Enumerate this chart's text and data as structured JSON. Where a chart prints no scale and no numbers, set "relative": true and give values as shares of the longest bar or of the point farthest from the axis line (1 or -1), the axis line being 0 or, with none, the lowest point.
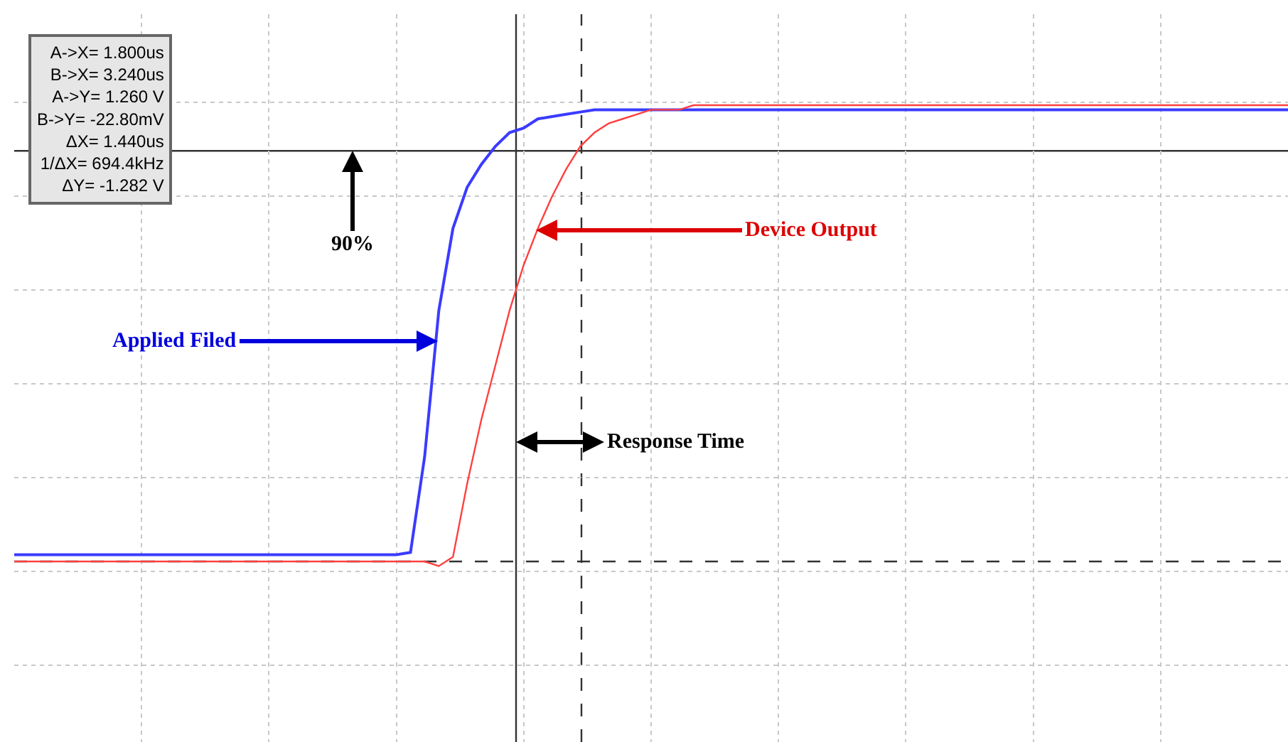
{
  "chart_data": {
    "type": "line",
    "relative": true,
    "grid": true,
    "marker": "none",
    "line_style": "solid",
    "categories": [
      null,
      null,
      null,
      null,
      null,
      null,
      null,
      null,
      null,
      null,
      null,
      null,
      null,
      null,
      null,
      null,
      null,
      null,
      null,
      null,
      null,
      null,
      null,
      null,
      null,
      null,
      null,
      null,
      null,
      null,
      null,
      null,
      null,
      null,
      null,
      null,
      null,
      null,
      null,
      null,
      null,
      null,
      null,
      null,
      null,
      null,
      null,
      null,
      null,
      null,
      null,
      null,
      null,
      null,
      null,
      null,
      null,
      null,
      null,
      null,
      null,
      null,
      null,
      null,
      null,
      null,
      null,
      null,
      null,
      null,
      null,
      null,
      null,
      null,
      null,
      null,
      null,
      null,
      null,
      null,
      null,
      null,
      null,
      null,
      null,
      null,
      null,
      null,
      null,
      null,
      null
    ],
    "series": [
      {
        "color": "#3b3bff",
        "values": [
          0.015,
          0.015,
          0.015,
          0.015,
          0.015,
          0.015,
          0.015,
          0.015,
          0.015,
          0.015,
          0.015,
          0.015,
          0.015,
          0.015,
          0.015,
          0.015,
          0.015,
          0.015,
          0.015,
          0.015,
          0.015,
          0.015,
          0.015,
          0.015,
          0.015,
          0.015,
          0.015,
          0.015,
          0.02,
          0.23,
          0.55,
          0.73,
          0.82,
          0.87,
          0.91,
          0.94,
          0.95,
          0.97,
          0.975,
          0.98,
          0.985,
          0.99,
          0.99,
          0.99,
          0.99,
          0.99,
          0.99,
          0.99,
          0.99,
          0.99,
          0.99,
          0.99,
          0.99,
          0.99,
          0.99,
          0.99,
          0.99,
          0.99,
          0.99,
          0.99,
          0.99,
          0.99,
          0.99,
          0.99,
          0.99,
          0.99,
          0.99,
          0.99,
          0.99,
          0.99,
          0.99,
          0.99,
          0.99,
          0.99,
          0.99,
          0.99,
          0.99,
          0.99,
          0.99,
          0.99,
          0.99,
          0.99,
          0.99,
          0.99,
          0.99,
          0.99,
          0.99,
          0.99,
          0.99,
          0.99,
          0.99
        ]
      },
      {
        "color": "#ff4040",
        "values": [
          0.0,
          0.0,
          0.0,
          0.0,
          0.0,
          0.0,
          0.0,
          0.0,
          0.0,
          0.0,
          0.0,
          0.0,
          0.0,
          0.0,
          0.0,
          0.0,
          0.0,
          0.0,
          0.0,
          0.0,
          0.0,
          0.0,
          0.0,
          0.0,
          0.0,
          0.0,
          0.0,
          0.0,
          0.0,
          0.0,
          -0.01,
          0.01,
          0.17,
          0.31,
          0.43,
          0.55,
          0.65,
          0.73,
          0.8,
          0.86,
          0.91,
          0.94,
          0.96,
          0.97,
          0.98,
          0.99,
          0.99,
          0.99,
          1.0,
          1.0,
          1.0,
          1.0,
          1.0,
          1.0,
          1.0,
          1.0,
          1.0,
          1.0,
          1.0,
          1.0,
          1.0,
          1.0,
          1.0,
          1.0,
          1.0,
          1.0,
          1.0,
          1.0,
          1.0,
          1.0,
          1.0,
          1.0,
          1.0,
          1.0,
          1.0,
          1.0,
          1.0,
          1.0,
          1.0,
          1.0,
          1.0,
          1.0,
          1.0,
          1.0,
          1.0,
          1.0,
          1.0,
          1.0,
          1.0,
          1.0,
          1.0
        ]
      }
    ],
    "ref_lines": [
      {
        "axis": "y",
        "value": 0.9,
        "color": "#333333",
        "line_style": "solid"
      },
      {
        "axis": "y",
        "value": 0,
        "color": "#333333",
        "line_style": "dashed"
      }
    ],
    "annotations": [
      "A->X= 1.800us",
      "B->X= 3.240us",
      "A->Y= 1.260 V",
      "B->Y= -22.80mV",
      "ΔX= 1.440us",
      "1/ΔX= 694.4kHz",
      "ΔY= -1.282 V",
      "90%",
      "Applied Filed",
      "Device Output",
      "Response Time"
    ]
  }
}
